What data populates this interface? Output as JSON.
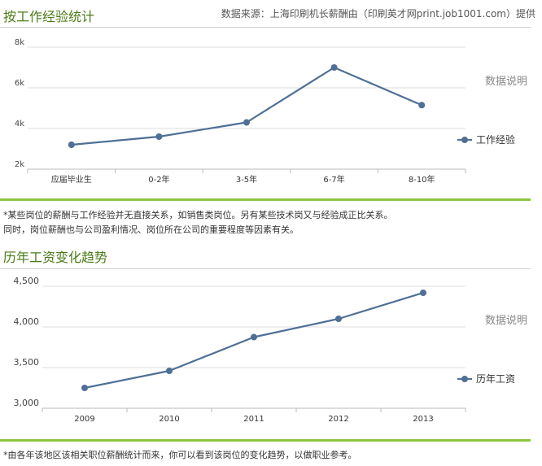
{
  "section1": {
    "title": "按工作经验统计",
    "source": "数据来源：上海印刷机长薪酬由（印刷英才网print.job1001.com）提供",
    "data_note": "数据说明",
    "notes": [
      "*某些岗位的薪酬与工作经验并无直接关系，如销售类岗位。另有某些技术岗又与经验成正比关系。",
      "同时，岗位薪酬也与公司盈利情况、岗位所在公司的重要程度等因素有关。"
    ]
  },
  "section2": {
    "title": "历年工资变化趋势",
    "data_note": "数据说明",
    "notes": [
      "*由各年该地区该相关职位薪酬统计而来，你可以看到该岗位的变化趋势，以做职业参考。"
    ]
  },
  "colors": {
    "line": "#4f6f96",
    "title": "#4a7b17",
    "green_rule": "#8cc63f",
    "grid": "#dddddd"
  },
  "chart_data": [
    {
      "type": "line",
      "categories": [
        "应届毕业生",
        "0-2年",
        "3-5年",
        "6-7年",
        "8-10年"
      ],
      "series": [
        {
          "name": "工作经验",
          "values": [
            3200,
            3600,
            4300,
            7000,
            5150
          ]
        }
      ],
      "ylim": [
        2000,
        8000
      ],
      "yticks": [
        2000,
        4000,
        6000,
        8000
      ],
      "ytick_labels": [
        "2k",
        "4k",
        "6k",
        "8k"
      ],
      "grid": true,
      "legend": "right"
    },
    {
      "type": "line",
      "categories": [
        "2009",
        "2010",
        "2011",
        "2012",
        "2013"
      ],
      "series": [
        {
          "name": "历年工资",
          "values": [
            3250,
            3460,
            3875,
            4100,
            4420
          ]
        }
      ],
      "ylim": [
        3000,
        4500
      ],
      "yticks": [
        3000,
        3500,
        4000,
        4500
      ],
      "ytick_labels": [
        "3,000",
        "3,500",
        "4,000",
        "4,500"
      ],
      "grid": true,
      "legend": "right"
    }
  ]
}
